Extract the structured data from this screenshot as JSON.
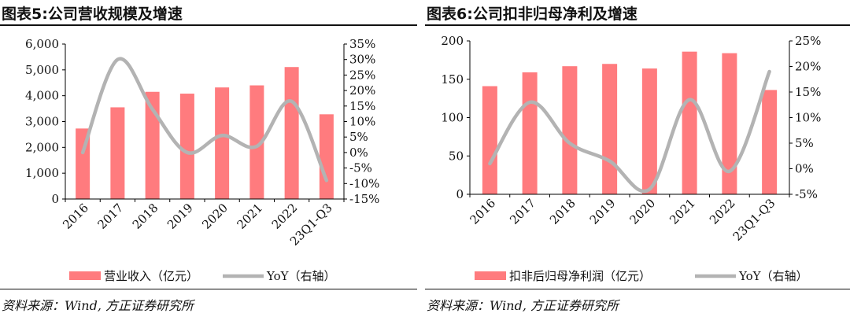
{
  "colors": {
    "bar": "#ff7b7e",
    "line": "#b3b3b3",
    "axis": "#000000"
  },
  "chart_data": [
    {
      "type": "bar+line",
      "title": "图表5:公司营收规模及增速",
      "categories": [
        "2016",
        "2017",
        "2018",
        "2019",
        "2020",
        "2021",
        "2022",
        "23Q1-Q3"
      ],
      "series": [
        {
          "name": "营业收入（亿元）",
          "type": "bar",
          "axis": "left",
          "values": [
            2730,
            3550,
            4150,
            4080,
            4320,
            4400,
            5110,
            3280
          ]
        },
        {
          "name": "YoY（右轴）",
          "type": "line",
          "axis": "right",
          "values": [
            0,
            30,
            14,
            0,
            5.5,
            2,
            16.5,
            -9
          ]
        }
      ],
      "left_axis": {
        "min": 0,
        "max": 6000,
        "step": 1000,
        "ticks": [
          "0",
          "1,000",
          "2,000",
          "3,000",
          "4,000",
          "5,000",
          "6,000"
        ]
      },
      "right_axis": {
        "min": -15,
        "max": 35,
        "step": 5,
        "ticks": [
          "-15%",
          "-10%",
          "-5%",
          "0%",
          "5%",
          "10%",
          "15%",
          "20%",
          "25%",
          "30%",
          "35%"
        ]
      },
      "legend_position": "bottom",
      "source": "资料来源：Wind, 方正证券研究所"
    },
    {
      "type": "bar+line",
      "title": "图表6:公司扣非归母净利及增速",
      "categories": [
        "2016",
        "2017",
        "2018",
        "2019",
        "2020",
        "2021",
        "2022",
        "23Q1-Q3"
      ],
      "series": [
        {
          "name": "扣非后归母净利润（亿元）",
          "type": "bar",
          "axis": "left",
          "values": [
            141,
            159,
            167,
            170,
            164,
            186,
            184,
            136
          ]
        },
        {
          "name": "YoY（右轴）",
          "type": "line",
          "axis": "right",
          "values": [
            1,
            13,
            5,
            1.5,
            -4,
            13.5,
            -0.5,
            19
          ]
        }
      ],
      "left_axis": {
        "min": 0,
        "max": 200,
        "step": 50,
        "ticks": [
          "0",
          "50",
          "100",
          "150",
          "200"
        ]
      },
      "right_axis": {
        "min": -5,
        "max": 25,
        "step": 5,
        "ticks": [
          "-5%",
          "0%",
          "5%",
          "10%",
          "15%",
          "20%",
          "25%"
        ]
      },
      "legend_position": "bottom",
      "source": "资料来源：Wind, 方正证券研究所"
    }
  ]
}
